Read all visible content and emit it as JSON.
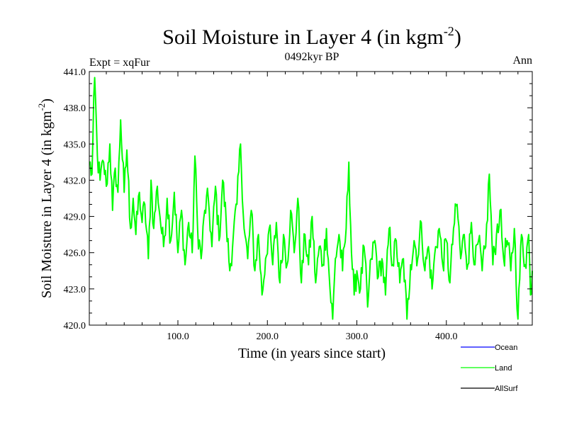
{
  "chart_data": {
    "type": "line",
    "title": "Soil Moisture in Layer 4 (in kgm",
    "title_sup": "-2",
    "title_close": ")",
    "subtitle_left": "Expt = xqFur",
    "subtitle_center": "0492kyr BP",
    "subtitle_right": "Ann",
    "xlabel": "Time (in years since start)",
    "ylabel": "Soil Moisture in Layer 4 (in kgm",
    "ylabel_sup": "-2",
    "ylabel_close": ")",
    "xlim": [
      1,
      496
    ],
    "ylim": [
      420.0,
      441.0
    ],
    "x_ticks": [
      100,
      200,
      300,
      400
    ],
    "x_tick_labels": [
      "100.0",
      "200.0",
      "300.0",
      "400.0"
    ],
    "y_ticks": [
      420,
      423,
      426,
      429,
      432,
      435,
      438,
      441
    ],
    "y_tick_labels": [
      "420.0",
      "423.0",
      "426.0",
      "429.0",
      "432.0",
      "435.0",
      "438.0",
      "441.0"
    ],
    "legend": [
      {
        "name": "Ocean",
        "color": "#0000ff"
      },
      {
        "name": "Land",
        "color": "#00ff00"
      },
      {
        "name": "AllSurf",
        "color": "#000000"
      }
    ],
    "series": [
      {
        "name": "Land",
        "color": "#00ff00",
        "x_start": 1,
        "x_step": 1,
        "anchors": [
          [
            1,
            433.5
          ],
          [
            4,
            432.5
          ],
          [
            7,
            440.5
          ],
          [
            10,
            434.0
          ],
          [
            13,
            432.0
          ],
          [
            17,
            433.5
          ],
          [
            20,
            431.5
          ],
          [
            24,
            435.0
          ],
          [
            27,
            429.5
          ],
          [
            30,
            433.0
          ],
          [
            33,
            431.0
          ],
          [
            36,
            437.0
          ],
          [
            40,
            431.0
          ],
          [
            43,
            434.5
          ],
          [
            47,
            428.0
          ],
          [
            50,
            430.5
          ],
          [
            53,
            427.5
          ],
          [
            57,
            431.0
          ],
          [
            60,
            428.5
          ],
          [
            63,
            430.0
          ],
          [
            67,
            425.5
          ],
          [
            70,
            432.0
          ],
          [
            73,
            428.0
          ],
          [
            77,
            431.5
          ],
          [
            80,
            429.0
          ],
          [
            84,
            426.5
          ],
          [
            88,
            430.5
          ],
          [
            92,
            427.0
          ],
          [
            96,
            431.0
          ],
          [
            100,
            426.0
          ],
          [
            104,
            429.5
          ],
          [
            108,
            425.0
          ],
          [
            112,
            428.5
          ],
          [
            116,
            426.0
          ],
          [
            119,
            434.0
          ],
          [
            122,
            428.0
          ],
          [
            126,
            425.5
          ],
          [
            130,
            429.5
          ],
          [
            134,
            430.5
          ],
          [
            138,
            426.5
          ],
          [
            142,
            431.5
          ],
          [
            146,
            427.0
          ],
          [
            150,
            432.0
          ],
          [
            154,
            428.5
          ],
          [
            158,
            424.5
          ],
          [
            162,
            427.5
          ],
          [
            166,
            430.0
          ],
          [
            170,
            435.0
          ],
          [
            174,
            428.0
          ],
          [
            178,
            425.5
          ],
          [
            182,
            429.5
          ],
          [
            186,
            424.5
          ],
          [
            190,
            427.5
          ],
          [
            194,
            422.5
          ],
          [
            198,
            425.5
          ],
          [
            202,
            428.0
          ],
          [
            206,
            425.0
          ],
          [
            210,
            428.5
          ],
          [
            214,
            423.5
          ],
          [
            218,
            427.5
          ],
          [
            222,
            425.0
          ],
          [
            226,
            429.5
          ],
          [
            230,
            426.0
          ],
          [
            234,
            430.5
          ],
          [
            238,
            423.5
          ],
          [
            242,
            427.5
          ],
          [
            246,
            425.0
          ],
          [
            250,
            429.0
          ],
          [
            254,
            423.5
          ],
          [
            258,
            426.5
          ],
          [
            262,
            425.0
          ],
          [
            266,
            428.0
          ],
          [
            270,
            423.0
          ],
          [
            273,
            420.5
          ],
          [
            276,
            425.5
          ],
          [
            280,
            427.5
          ],
          [
            284,
            424.5
          ],
          [
            288,
            428.0
          ],
          [
            291,
            433.5
          ],
          [
            294,
            426.0
          ],
          [
            297,
            422.5
          ],
          [
            300,
            424.5
          ],
          [
            304,
            423.0
          ],
          [
            308,
            426.5
          ],
          [
            312,
            421.5
          ],
          [
            316,
            425.5
          ],
          [
            320,
            427.0
          ],
          [
            324,
            424.0
          ],
          [
            328,
            425.5
          ],
          [
            332,
            422.5
          ],
          [
            336,
            428.0
          ],
          [
            340,
            425.0
          ],
          [
            344,
            427.0
          ],
          [
            348,
            423.5
          ],
          [
            352,
            425.5
          ],
          [
            356,
            420.5
          ],
          [
            360,
            425.0
          ],
          [
            364,
            427.0
          ],
          [
            368,
            425.5
          ],
          [
            372,
            428.5
          ],
          [
            376,
            424.5
          ],
          [
            380,
            426.5
          ],
          [
            384,
            423.0
          ],
          [
            388,
            426.5
          ],
          [
            392,
            428.0
          ],
          [
            396,
            425.0
          ],
          [
            400,
            427.0
          ],
          [
            404,
            423.5
          ],
          [
            408,
            428.0
          ],
          [
            412,
            430.0
          ],
          [
            416,
            425.5
          ],
          [
            420,
            427.5
          ],
          [
            424,
            425.0
          ],
          [
            428,
            428.5
          ],
          [
            432,
            425.0
          ],
          [
            436,
            427.0
          ],
          [
            440,
            424.5
          ],
          [
            444,
            426.5
          ],
          [
            448,
            432.5
          ],
          [
            452,
            425.0
          ],
          [
            456,
            427.5
          ],
          [
            460,
            429.5
          ],
          [
            464,
            425.5
          ],
          [
            468,
            427.0
          ],
          [
            472,
            424.5
          ],
          [
            476,
            428.0
          ],
          [
            480,
            420.5
          ],
          [
            484,
            427.5
          ],
          [
            488,
            425.0
          ],
          [
            492,
            427.5
          ],
          [
            494,
            422.5
          ],
          [
            496,
            424.5
          ]
        ]
      }
    ]
  }
}
